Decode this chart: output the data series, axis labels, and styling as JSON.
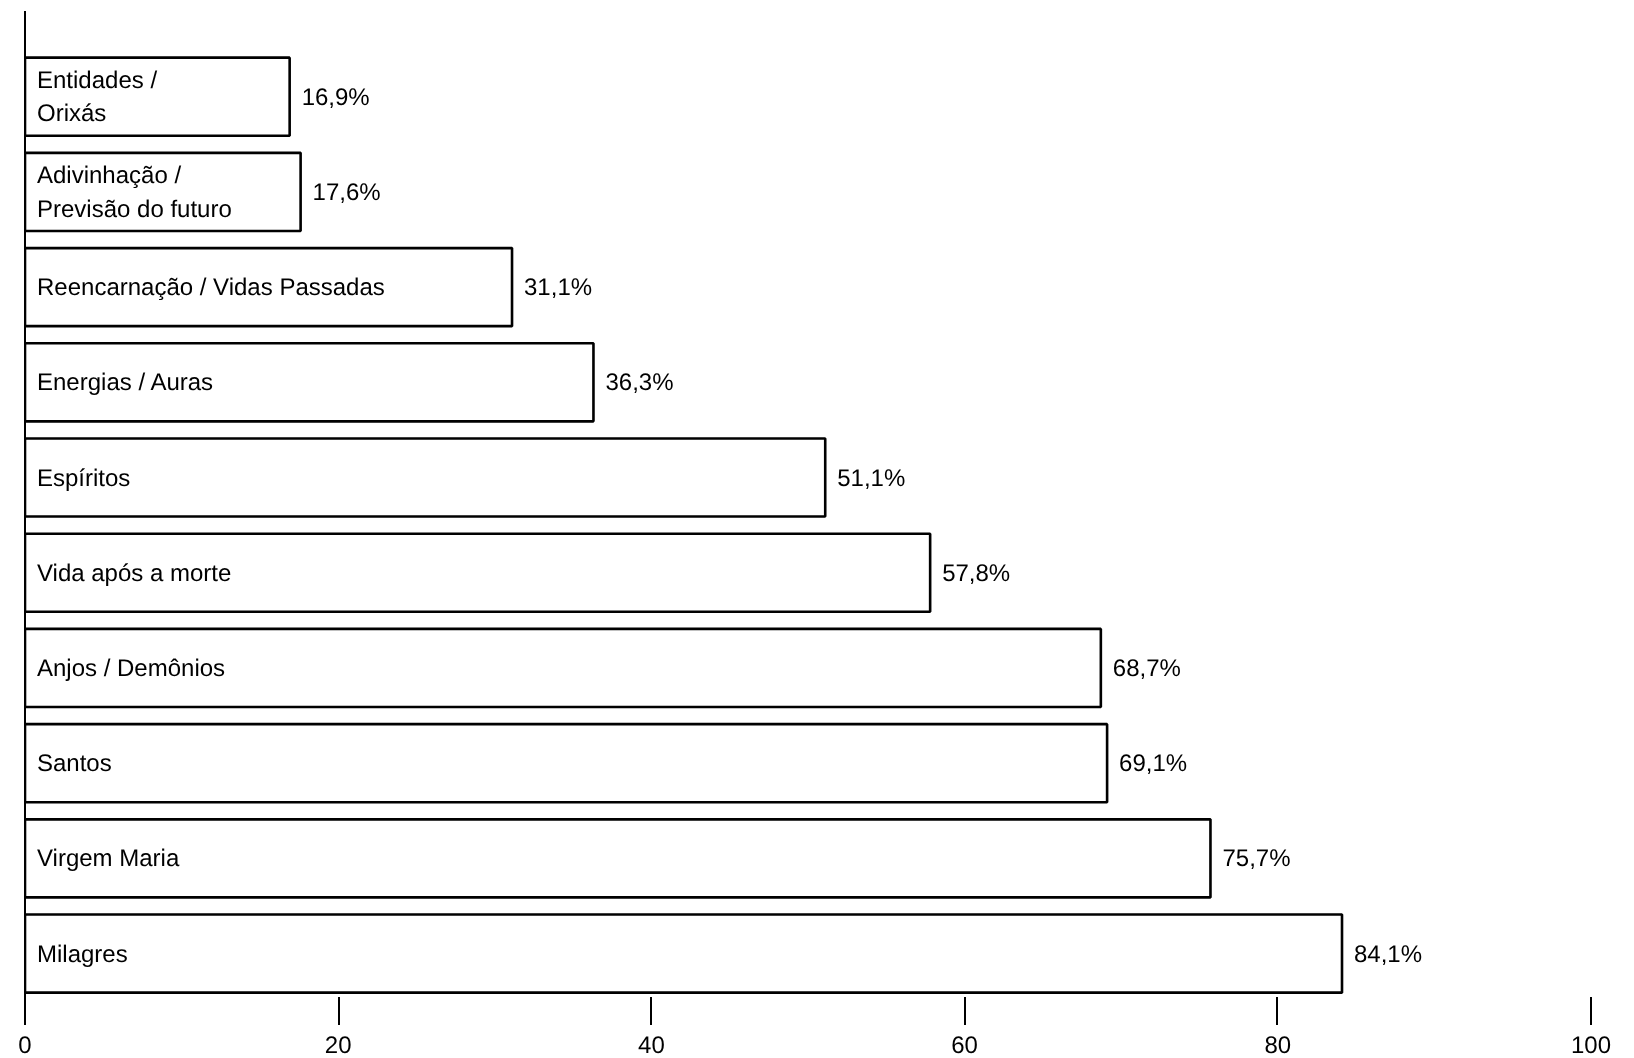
{
  "chart_data": {
    "type": "bar",
    "orientation": "horizontal",
    "categories": [
      "Entidades /\nOrixás",
      "Adivinhação /\nPrevisão do futuro",
      "Reencarnação / Vidas Passadas",
      "Energias / Auras",
      "Espíritos",
      "Vida após a morte",
      "Anjos / Demônios",
      "Santos",
      "Virgem Maria",
      "Milagres"
    ],
    "values": [
      16.9,
      17.6,
      31.1,
      36.3,
      51.1,
      57.8,
      68.7,
      69.1,
      75.7,
      84.1
    ],
    "value_labels": [
      "16,9%",
      "17,6%",
      "31,1%",
      "36,3%",
      "51,1%",
      "57,8%",
      "68,7%",
      "69,1%",
      "75,7%",
      "84,1%"
    ],
    "color": "#ffffff",
    "xlim": [
      0,
      100
    ],
    "xticks": [
      0,
      20,
      40,
      60,
      80,
      100
    ],
    "grid": false
  }
}
